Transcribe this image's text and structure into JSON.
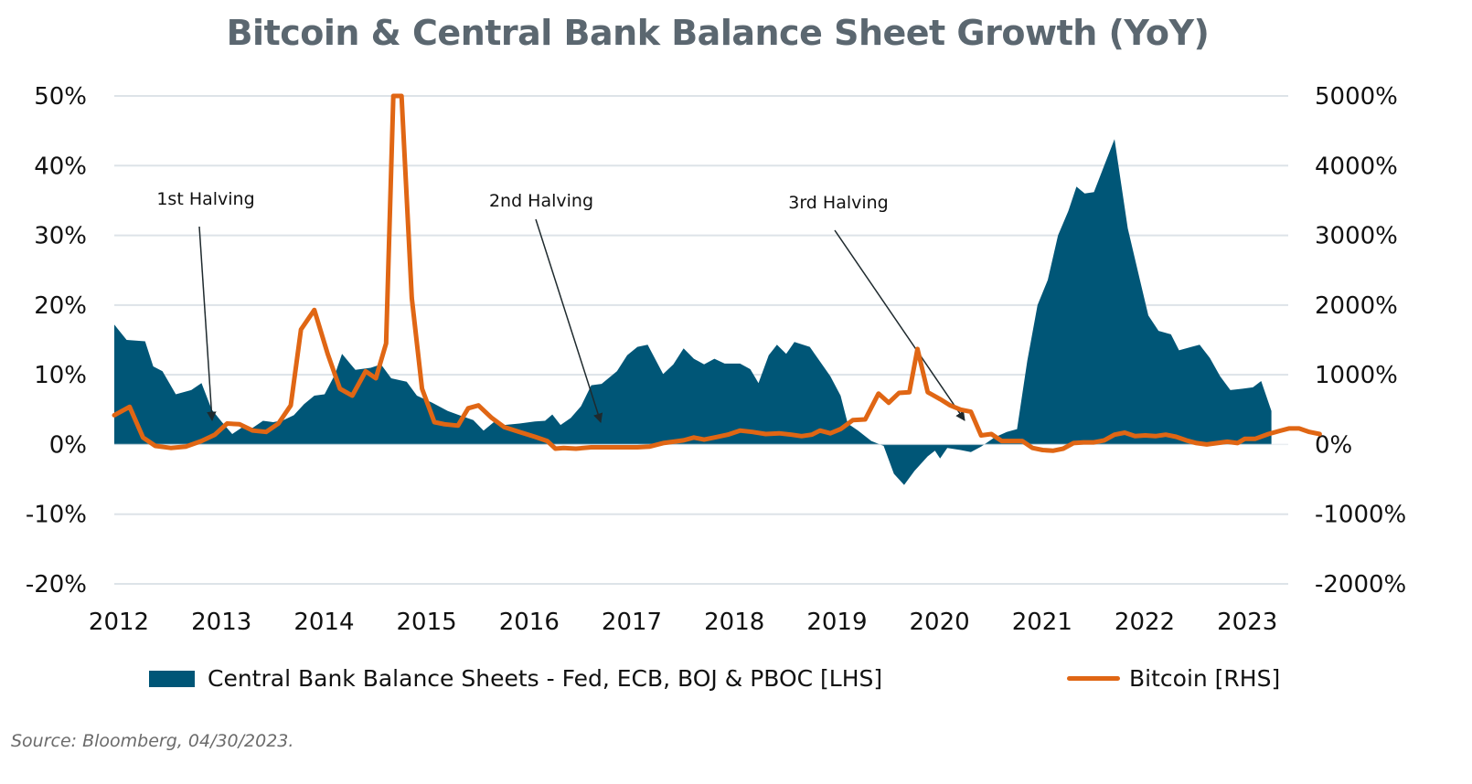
{
  "chart_data": {
    "type": "area+line",
    "title": "Bitcoin & Central Bank Balance Sheet Growth (YoY)",
    "xlabel": "",
    "x_ticks": [
      "2012",
      "2013",
      "2014",
      "2015",
      "2016",
      "2017",
      "2018",
      "2019",
      "2020",
      "2021",
      "2022",
      "2023"
    ],
    "y_left": {
      "label": "Central Bank Balance Sheets [LHS]",
      "ticks": [
        "50%",
        "40%",
        "30%",
        "20%",
        "10%",
        "0%",
        "-10%",
        "-20%"
      ],
      "tick_values": [
        50,
        40,
        30,
        20,
        10,
        0,
        -10,
        -20
      ],
      "range": [
        -20,
        50
      ]
    },
    "y_right": {
      "label": "Bitcoin [RHS]",
      "ticks": [
        "5000%",
        "4000%",
        "3000%",
        "2000%",
        "1000%",
        "0%",
        "-1000%",
        "-2000%"
      ],
      "tick_values": [
        5000,
        4000,
        3000,
        2000,
        1000,
        0,
        -1000,
        -2000
      ],
      "range": [
        -2000,
        5000
      ]
    },
    "x_range": [
      2012.0,
      2023.33
    ],
    "grid": true,
    "legend_position": "bottom",
    "series": [
      {
        "name": "Central Bank Balance Sheets - Fed, ECB, BOJ & PBOC [LHS]",
        "type": "area",
        "axis": "left",
        "color": "#005677",
        "points": [
          [
            2012.0,
            17.2
          ],
          [
            2012.12,
            15.0
          ],
          [
            2012.3,
            14.8
          ],
          [
            2012.38,
            11.2
          ],
          [
            2012.47,
            10.5
          ],
          [
            2012.6,
            7.2
          ],
          [
            2012.75,
            7.8
          ],
          [
            2012.85,
            8.8
          ],
          [
            2012.95,
            5.0
          ],
          [
            2013.05,
            3.2
          ],
          [
            2013.15,
            1.5
          ],
          [
            2013.25,
            2.5
          ],
          [
            2013.35,
            2.4
          ],
          [
            2013.45,
            3.4
          ],
          [
            2013.55,
            3.2
          ],
          [
            2013.65,
            3.5
          ],
          [
            2013.75,
            4.2
          ],
          [
            2013.85,
            5.8
          ],
          [
            2013.95,
            7.0
          ],
          [
            2014.05,
            7.2
          ],
          [
            2014.15,
            10.0
          ],
          [
            2014.22,
            13.0
          ],
          [
            2014.35,
            10.7
          ],
          [
            2014.5,
            11.0
          ],
          [
            2014.6,
            11.5
          ],
          [
            2014.7,
            9.5
          ],
          [
            2014.85,
            9.0
          ],
          [
            2014.95,
            7.0
          ],
          [
            2015.1,
            6.0
          ],
          [
            2015.25,
            4.8
          ],
          [
            2015.4,
            4.0
          ],
          [
            2015.5,
            3.5
          ],
          [
            2015.6,
            2.0
          ],
          [
            2015.7,
            3.2
          ],
          [
            2015.8,
            2.8
          ],
          [
            2015.95,
            3.0
          ],
          [
            2016.1,
            3.3
          ],
          [
            2016.2,
            3.4
          ],
          [
            2016.27,
            4.3
          ],
          [
            2016.35,
            2.8
          ],
          [
            2016.45,
            3.8
          ],
          [
            2016.55,
            5.5
          ],
          [
            2016.65,
            8.5
          ],
          [
            2016.75,
            8.7
          ],
          [
            2016.9,
            10.5
          ],
          [
            2017.0,
            12.8
          ],
          [
            2017.1,
            14.0
          ],
          [
            2017.2,
            14.3
          ],
          [
            2017.35,
            10.1
          ],
          [
            2017.45,
            11.5
          ],
          [
            2017.55,
            13.8
          ],
          [
            2017.65,
            12.3
          ],
          [
            2017.75,
            11.5
          ],
          [
            2017.85,
            12.3
          ],
          [
            2017.95,
            11.6
          ],
          [
            2018.1,
            11.6
          ],
          [
            2018.2,
            10.8
          ],
          [
            2018.28,
            8.8
          ],
          [
            2018.38,
            12.8
          ],
          [
            2018.46,
            14.3
          ],
          [
            2018.55,
            13.0
          ],
          [
            2018.63,
            14.7
          ],
          [
            2018.78,
            14.0
          ],
          [
            2018.88,
            11.9
          ],
          [
            2018.98,
            9.8
          ],
          [
            2019.08,
            7.0
          ],
          [
            2019.15,
            3.0
          ],
          [
            2019.25,
            2.0
          ],
          [
            2019.38,
            0.5
          ],
          [
            2019.5,
            -0.2
          ],
          [
            2019.6,
            -4.2
          ],
          [
            2019.7,
            -5.8
          ],
          [
            2019.8,
            -3.8
          ],
          [
            2019.93,
            -1.7
          ],
          [
            2020.0,
            -0.9
          ],
          [
            2020.05,
            -2.0
          ],
          [
            2020.12,
            -0.5
          ],
          [
            2020.25,
            -0.8
          ],
          [
            2020.35,
            -1.1
          ],
          [
            2020.45,
            -0.3
          ],
          [
            2020.58,
            1.0
          ],
          [
            2020.7,
            1.8
          ],
          [
            2020.8,
            2.2
          ],
          [
            2020.9,
            12.0
          ],
          [
            2021.0,
            20.0
          ],
          [
            2021.1,
            23.6
          ],
          [
            2021.2,
            30.0
          ],
          [
            2021.3,
            33.5
          ],
          [
            2021.38,
            37.0
          ],
          [
            2021.46,
            36.0
          ],
          [
            2021.55,
            36.2
          ],
          [
            2021.65,
            40.0
          ],
          [
            2021.75,
            43.8
          ],
          [
            2021.88,
            31.0
          ],
          [
            2022.0,
            23.5
          ],
          [
            2022.08,
            18.5
          ],
          [
            2022.18,
            16.3
          ],
          [
            2022.3,
            15.8
          ],
          [
            2022.38,
            13.5
          ],
          [
            2022.5,
            14.0
          ],
          [
            2022.58,
            14.3
          ],
          [
            2022.68,
            12.4
          ],
          [
            2022.78,
            9.8
          ],
          [
            2022.88,
            7.8
          ],
          [
            2023.0,
            8.0
          ],
          [
            2023.1,
            8.2
          ],
          [
            2023.18,
            9.1
          ],
          [
            2023.28,
            4.8
          ]
        ]
      },
      {
        "name": "Bitcoin [RHS]",
        "type": "line",
        "axis": "right",
        "color": "#e06614",
        "points": [
          [
            2012.0,
            420
          ],
          [
            2012.15,
            540
          ],
          [
            2012.28,
            100
          ],
          [
            2012.4,
            -20
          ],
          [
            2012.55,
            -50
          ],
          [
            2012.7,
            -30
          ],
          [
            2012.85,
            50
          ],
          [
            2012.98,
            140
          ],
          [
            2013.1,
            300
          ],
          [
            2013.22,
            290
          ],
          [
            2013.35,
            200
          ],
          [
            2013.48,
            180
          ],
          [
            2013.6,
            300
          ],
          [
            2013.72,
            560
          ],
          [
            2013.82,
            1650
          ],
          [
            2013.95,
            1930
          ],
          [
            2014.08,
            1300
          ],
          [
            2014.2,
            800
          ],
          [
            2014.32,
            700
          ],
          [
            2014.45,
            1050
          ],
          [
            2014.55,
            950
          ],
          [
            2014.65,
            1450
          ],
          [
            2014.72,
            5000
          ],
          [
            2014.8,
            5000
          ],
          [
            2014.9,
            2100
          ],
          [
            2015.0,
            800
          ],
          [
            2015.12,
            320
          ],
          [
            2015.22,
            290
          ],
          [
            2015.35,
            270
          ],
          [
            2015.45,
            520
          ],
          [
            2015.55,
            560
          ],
          [
            2015.68,
            380
          ],
          [
            2015.8,
            250
          ],
          [
            2015.95,
            180
          ],
          [
            2016.1,
            110
          ],
          [
            2016.22,
            50
          ],
          [
            2016.3,
            -60
          ],
          [
            2016.38,
            -50
          ],
          [
            2016.5,
            -60
          ],
          [
            2016.65,
            -40
          ],
          [
            2016.8,
            -40
          ],
          [
            2016.95,
            -40
          ],
          [
            2017.1,
            -40
          ],
          [
            2017.22,
            -30
          ],
          [
            2017.35,
            20
          ],
          [
            2017.45,
            40
          ],
          [
            2017.55,
            60
          ],
          [
            2017.65,
            100
          ],
          [
            2017.75,
            70
          ],
          [
            2017.85,
            100
          ],
          [
            2017.98,
            140
          ],
          [
            2018.1,
            200
          ],
          [
            2018.22,
            180
          ],
          [
            2018.35,
            150
          ],
          [
            2018.48,
            160
          ],
          [
            2018.6,
            140
          ],
          [
            2018.7,
            120
          ],
          [
            2018.8,
            140
          ],
          [
            2018.88,
            200
          ],
          [
            2018.98,
            160
          ],
          [
            2019.08,
            220
          ],
          [
            2019.2,
            350
          ],
          [
            2019.32,
            360
          ],
          [
            2019.45,
            730
          ],
          [
            2019.55,
            600
          ],
          [
            2019.65,
            740
          ],
          [
            2019.75,
            750
          ],
          [
            2019.83,
            1370
          ],
          [
            2019.93,
            750
          ],
          [
            2020.05,
            650
          ],
          [
            2020.15,
            560
          ],
          [
            2020.25,
            500
          ],
          [
            2020.35,
            470
          ],
          [
            2020.45,
            130
          ],
          [
            2020.55,
            150
          ],
          [
            2020.65,
            50
          ],
          [
            2020.75,
            50
          ],
          [
            2020.85,
            50
          ],
          [
            2020.95,
            -50
          ],
          [
            2021.05,
            -80
          ],
          [
            2021.15,
            -90
          ],
          [
            2021.25,
            -60
          ],
          [
            2021.35,
            20
          ],
          [
            2021.45,
            30
          ],
          [
            2021.55,
            30
          ],
          [
            2021.65,
            60
          ],
          [
            2021.75,
            140
          ],
          [
            2021.85,
            170
          ],
          [
            2021.95,
            120
          ],
          [
            2022.05,
            130
          ],
          [
            2022.15,
            120
          ],
          [
            2022.25,
            140
          ],
          [
            2022.35,
            110
          ],
          [
            2022.45,
            60
          ],
          [
            2022.55,
            20
          ],
          [
            2022.65,
            0
          ],
          [
            2022.75,
            20
          ],
          [
            2022.85,
            40
          ],
          [
            2022.95,
            20
          ],
          [
            2023.02,
            80
          ],
          [
            2023.12,
            80
          ],
          [
            2023.25,
            150
          ],
          [
            2023.35,
            190
          ],
          [
            2023.45,
            230
          ],
          [
            2023.55,
            230
          ],
          [
            2023.65,
            180
          ],
          [
            2023.75,
            150
          ]
        ]
      }
    ],
    "annotations": [
      {
        "text": "1st Halving",
        "x": 2012.91,
        "target_lhs": 3.5
      },
      {
        "text": "2nd Halving",
        "x": 2016.53,
        "target_lhs": 2.5
      },
      {
        "text": "3rd Halving",
        "x": 2020.36,
        "target_lhs": 2.0
      }
    ]
  },
  "legend": {
    "area_label": "Central Bank Balance Sheets - Fed, ECB, BOJ & PBOC [LHS]",
    "line_label": "Bitcoin [RHS]"
  },
  "source": "Source: Bloomberg, 04/30/2023."
}
